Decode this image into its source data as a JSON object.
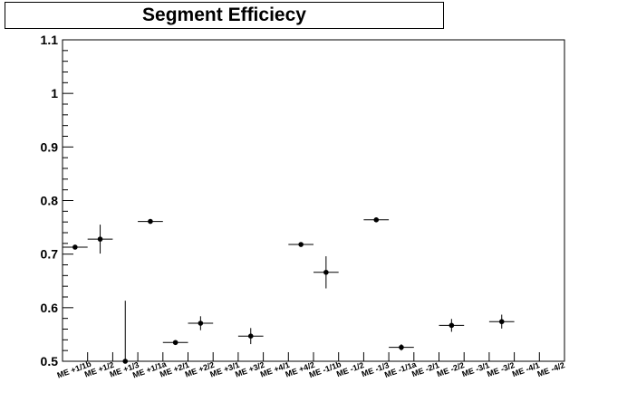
{
  "chart_data": {
    "type": "scatter",
    "title": "Segment Efficiecy",
    "xlabel": "",
    "ylabel": "",
    "ylim": [
      0.5,
      1.1
    ],
    "y_ticks": [
      "0.5",
      "0.6",
      "0.7",
      "0.8",
      "0.9",
      "1",
      "1.1"
    ],
    "grid": false,
    "categories": [
      "ME +1/1b",
      "ME +1/2",
      "ME +1/3",
      "ME +1/1a",
      "ME +2/1",
      "ME +2/2",
      "ME +3/1",
      "ME +3/2",
      "ME +4/1",
      "ME +4/2",
      "ME -1/1b",
      "ME -1/2",
      "ME -1/3",
      "ME -1/1a",
      "ME -2/1",
      "ME -2/2",
      "ME -3/1",
      "ME -3/2",
      "ME -4/1",
      "ME -4/2"
    ],
    "series": [
      {
        "marker_color": "#000000",
        "points": [
          {
            "category": "ME +1/1b",
            "y": 0.713,
            "err": 0.003
          },
          {
            "category": "ME +1/2",
            "y": 0.728,
            "err": 0.027
          },
          {
            "category": "ME +1/3",
            "y": 0.5,
            "err": 0.113
          },
          {
            "category": "ME +1/1a",
            "y": 0.761,
            "err": 0.003
          },
          {
            "category": "ME +2/1",
            "y": 0.535,
            "err": 0.004
          },
          {
            "category": "ME +2/2",
            "y": 0.571,
            "err": 0.013
          },
          {
            "category": "ME +3/2",
            "y": 0.547,
            "err": 0.015
          },
          {
            "category": "ME +4/2",
            "y": 0.718,
            "err": 0.003
          },
          {
            "category": "ME -1/1b",
            "y": 0.666,
            "err": 0.03
          },
          {
            "category": "ME -1/3",
            "y": 0.764,
            "err": 0.003
          },
          {
            "category": "ME -1/1a",
            "y": 0.526,
            "err": 0.006
          },
          {
            "category": "ME -2/2",
            "y": 0.567,
            "err": 0.012
          },
          {
            "category": "ME -3/2",
            "y": 0.574,
            "err": 0.013
          }
        ]
      }
    ]
  }
}
